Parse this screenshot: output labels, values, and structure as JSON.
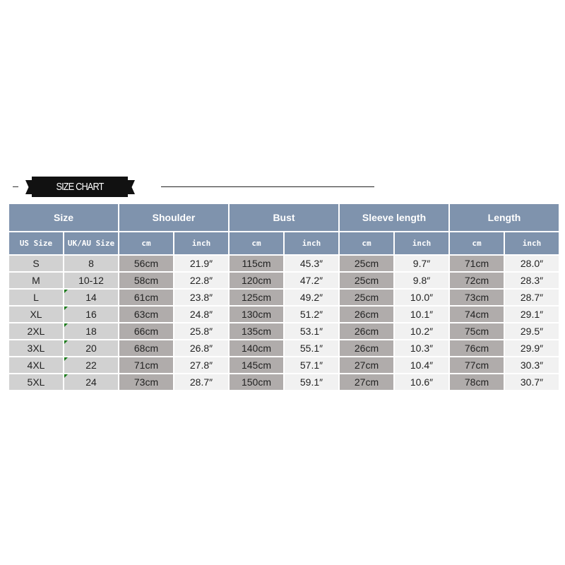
{
  "banner": {
    "title": "SIZE CHART"
  },
  "headers": {
    "size": "Size",
    "shoulder": "Shoulder",
    "bust": "Bust",
    "sleeve": "Sleeve length",
    "length": "Length"
  },
  "subheaders": {
    "us": "US Size",
    "uk": "UK/AU Size",
    "cm": "cm",
    "inch": "inch"
  },
  "rows": [
    {
      "us": "S",
      "uk": "8",
      "sh_cm": "56cm",
      "sh_in": "21.9″",
      "bu_cm": "115cm",
      "bu_in": "45.3″",
      "sl_cm": "25cm",
      "sl_in": "9.7″",
      "le_cm": "71cm",
      "le_in": "28.0″"
    },
    {
      "us": "M",
      "uk": "10-12",
      "sh_cm": "58cm",
      "sh_in": "22.8″",
      "bu_cm": "120cm",
      "bu_in": "47.2″",
      "sl_cm": "25cm",
      "sl_in": "9.8″",
      "le_cm": "72cm",
      "le_in": "28.3″"
    },
    {
      "us": "L",
      "uk": "14",
      "sh_cm": "61cm",
      "sh_in": "23.8″",
      "bu_cm": "125cm",
      "bu_in": "49.2″",
      "sl_cm": "25cm",
      "sl_in": "10.0″",
      "le_cm": "73cm",
      "le_in": "28.7″"
    },
    {
      "us": "XL",
      "uk": "16",
      "sh_cm": "63cm",
      "sh_in": "24.8″",
      "bu_cm": "130cm",
      "bu_in": "51.2″",
      "sl_cm": "26cm",
      "sl_in": "10.1″",
      "le_cm": "74cm",
      "le_in": "29.1″"
    },
    {
      "us": "2XL",
      "uk": "18",
      "sh_cm": "66cm",
      "sh_in": "25.8″",
      "bu_cm": "135cm",
      "bu_in": "53.1″",
      "sl_cm": "26cm",
      "sl_in": "10.2″",
      "le_cm": "75cm",
      "le_in": "29.5″"
    },
    {
      "us": "3XL",
      "uk": "20",
      "sh_cm": "68cm",
      "sh_in": "26.8″",
      "bu_cm": "140cm",
      "bu_in": "55.1″",
      "sl_cm": "26cm",
      "sl_in": "10.3″",
      "le_cm": "76cm",
      "le_in": "29.9″"
    },
    {
      "us": "4XL",
      "uk": "22",
      "sh_cm": "71cm",
      "sh_in": "27.8″",
      "bu_cm": "145cm",
      "bu_in": "57.1″",
      "sl_cm": "27cm",
      "sl_in": "10.4″",
      "le_cm": "77cm",
      "le_in": "30.3″"
    },
    {
      "us": "5XL",
      "uk": "24",
      "sh_cm": "73cm",
      "sh_in": "28.7″",
      "bu_cm": "150cm",
      "bu_in": "59.1″",
      "sl_cm": "27cm",
      "sl_in": "10.6″",
      "le_cm": "78cm",
      "le_in": "30.7″"
    }
  ],
  "colors": {
    "header": "#7f93ad",
    "size_cell": "#d1d1d1",
    "cm_cell": "#b0acab",
    "inch_cell": "#f1f1f1"
  }
}
